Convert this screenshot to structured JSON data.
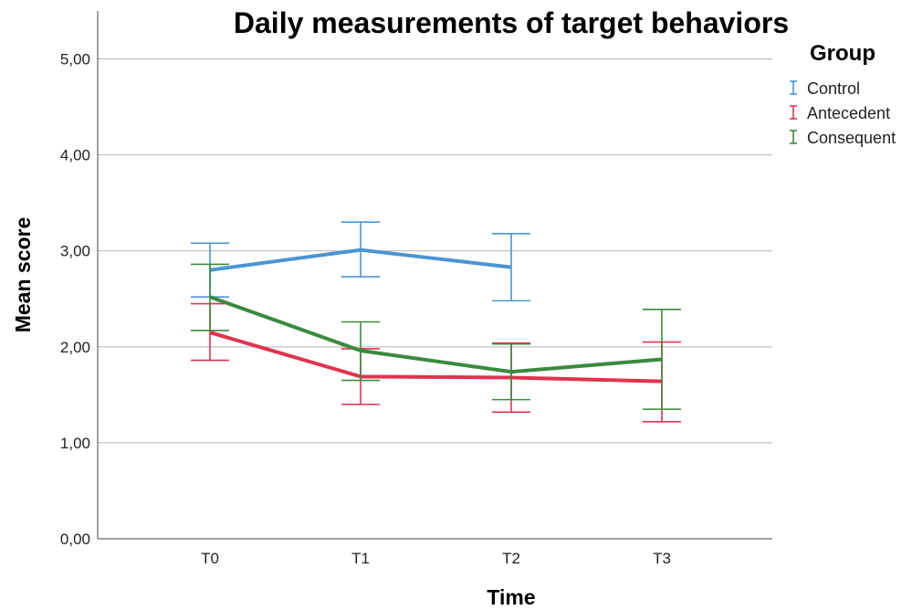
{
  "chart_data": {
    "type": "line",
    "title": "Daily measurements of target behaviors",
    "xlabel": "Time",
    "ylabel": "Mean score",
    "categories": [
      "T0",
      "T1",
      "T2",
      "T3"
    ],
    "y_ticks": [
      "0,00",
      "1,00",
      "2,00",
      "3,00",
      "4,00",
      "5,00"
    ],
    "ylim": [
      0,
      5.5
    ],
    "grid": "horizontal",
    "error_bars": true,
    "legend": {
      "title": "Group",
      "position": "top-right"
    },
    "series": [
      {
        "name": "Control",
        "color": "#4a95d2",
        "values": [
          2.8,
          3.01,
          2.83,
          null
        ],
        "error_low": [
          2.52,
          2.73,
          2.48,
          null
        ],
        "error_high": [
          3.08,
          3.3,
          3.18,
          null
        ]
      },
      {
        "name": "Antecedent",
        "color": "#e0334f",
        "values": [
          2.15,
          1.69,
          1.68,
          1.64
        ],
        "error_low": [
          1.86,
          1.4,
          1.32,
          1.22
        ],
        "error_high": [
          2.45,
          1.98,
          2.04,
          2.05
        ]
      },
      {
        "name": "Consequent",
        "color": "#3a8a3e",
        "values": [
          2.52,
          1.96,
          1.74,
          1.87
        ],
        "error_low": [
          2.17,
          1.65,
          1.45,
          1.35
        ],
        "error_high": [
          2.86,
          2.26,
          2.03,
          2.39
        ]
      }
    ]
  }
}
